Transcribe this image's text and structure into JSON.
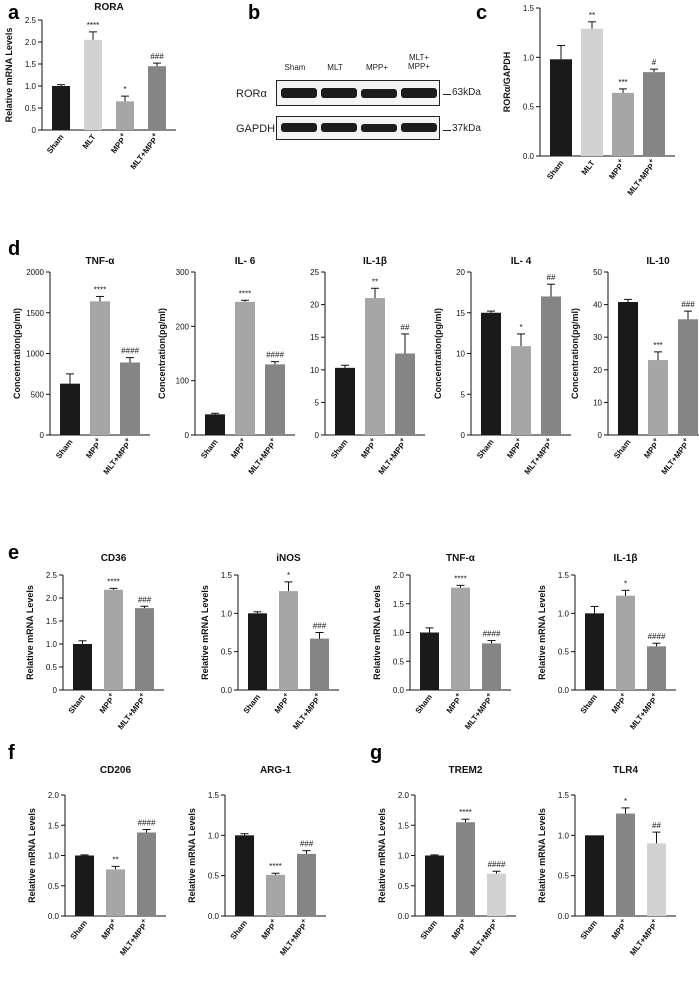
{
  "figure": {
    "panel_letters": [
      "a",
      "b",
      "c",
      "d",
      "e",
      "f",
      "g"
    ]
  },
  "colors": {
    "black": "#1a1a1a",
    "light_gray": "#d2d2d2",
    "mid_gray": "#a6a6a6",
    "dark_gray": "#858585"
  },
  "blot": {
    "lanes": [
      "Sham",
      "MLT",
      "MPP+",
      "MLT+ MPP+"
    ],
    "rows": [
      {
        "label": "RORα",
        "size": "63kDa"
      },
      {
        "label": "GAPDH",
        "size": "37kDa"
      }
    ]
  },
  "chart_data": [
    {
      "id": "a",
      "type": "bar",
      "title": "RORA",
      "xlabel": "",
      "ylabel": "Relative mRNA Levels",
      "categories": [
        "Sham",
        "MLT",
        "MPP+",
        "MLT+MPP+"
      ],
      "values": [
        1.0,
        2.05,
        0.65,
        1.45
      ],
      "errors": [
        0.03,
        0.18,
        0.12,
        0.07
      ],
      "annotations": [
        "",
        "****",
        "*",
        "###"
      ],
      "ylim": [
        0,
        2.5
      ],
      "ticks": [
        0,
        0.5,
        1.0,
        1.5,
        2.0,
        2.5
      ],
      "bar_colors": [
        "#1a1a1a",
        "#d2d2d2",
        "#a6a6a6",
        "#858585"
      ]
    },
    {
      "id": "c",
      "type": "bar",
      "title": "",
      "xlabel": "",
      "ylabel": "RORα/GAPDH",
      "categories": [
        "Sham",
        "MLT",
        "MPP+",
        "MLT+MPP+"
      ],
      "values": [
        0.98,
        1.29,
        0.64,
        0.85
      ],
      "errors": [
        0.14,
        0.07,
        0.04,
        0.03
      ],
      "annotations": [
        "",
        "**",
        "***",
        "#"
      ],
      "ylim": [
        0,
        1.5
      ],
      "ticks": [
        0.0,
        0.5,
        1.0,
        1.5
      ],
      "bar_colors": [
        "#1a1a1a",
        "#d2d2d2",
        "#a6a6a6",
        "#858585"
      ]
    },
    {
      "id": "d1",
      "type": "bar",
      "title": "TNF-α",
      "xlabel": "",
      "ylabel": "Concentration(pg/ml)",
      "categories": [
        "Sham",
        "MPP+",
        "MLT+MPP+"
      ],
      "values": [
        630,
        1640,
        890
      ],
      "errors": [
        120,
        60,
        60
      ],
      "annotations": [
        "",
        "****",
        "####"
      ],
      "ylim": [
        0,
        2000
      ],
      "ticks": [
        0,
        500,
        1000,
        1500,
        2000
      ],
      "bar_colors": [
        "#1a1a1a",
        "#a6a6a6",
        "#858585"
      ]
    },
    {
      "id": "d2",
      "type": "bar",
      "title": "IL- 6",
      "xlabel": "",
      "ylabel": "Concentration(pg/ml)",
      "categories": [
        "Sham",
        "MPP+",
        "MLT+MPP+"
      ],
      "values": [
        38,
        245,
        130
      ],
      "errors": [
        2,
        3,
        5
      ],
      "annotations": [
        "",
        "****",
        "####"
      ],
      "ylim": [
        0,
        300
      ],
      "ticks": [
        0,
        100,
        200,
        300
      ],
      "bar_colors": [
        "#1a1a1a",
        "#a6a6a6",
        "#858585"
      ]
    },
    {
      "id": "d3",
      "type": "bar",
      "title": "IL-1β",
      "xlabel": "",
      "ylabel": "",
      "categories": [
        "Sham",
        "MPP+",
        "MLT+MPP+"
      ],
      "values": [
        10.3,
        21.0,
        12.5
      ],
      "errors": [
        0.4,
        1.5,
        3.0
      ],
      "annotations": [
        "",
        "**",
        "##"
      ],
      "ylim": [
        0,
        25
      ],
      "ticks": [
        0,
        5,
        10,
        15,
        20,
        25
      ],
      "bar_colors": [
        "#1a1a1a",
        "#a6a6a6",
        "#858585"
      ]
    },
    {
      "id": "d4",
      "type": "bar",
      "title": "IL- 4",
      "xlabel": "",
      "ylabel": "Concentration(pg/ml)",
      "categories": [
        "Sham",
        "MPP+",
        "MLT+MPP+"
      ],
      "values": [
        15.0,
        10.9,
        17.0
      ],
      "errors": [
        0.2,
        1.5,
        1.5
      ],
      "annotations": [
        "",
        "*",
        "##"
      ],
      "ylim": [
        0,
        20
      ],
      "ticks": [
        0,
        5,
        10,
        15,
        20
      ],
      "bar_colors": [
        "#1a1a1a",
        "#a6a6a6",
        "#858585"
      ]
    },
    {
      "id": "d5",
      "type": "bar",
      "title": "IL-10",
      "xlabel": "",
      "ylabel": "Concentration(pg/ml)",
      "categories": [
        "Sham",
        "MPP+",
        "MLT+MPP+"
      ],
      "values": [
        40.8,
        23.0,
        35.5
      ],
      "errors": [
        0.8,
        2.5,
        2.5
      ],
      "annotations": [
        "",
        "***",
        "###"
      ],
      "ylim": [
        0,
        50
      ],
      "ticks": [
        0,
        10,
        20,
        30,
        40,
        50
      ],
      "bar_colors": [
        "#1a1a1a",
        "#a6a6a6",
        "#858585"
      ]
    },
    {
      "id": "e1",
      "type": "bar",
      "title": "CD36",
      "xlabel": "",
      "ylabel": "Relative mRNA Levels",
      "categories": [
        "Sham",
        "MPP+",
        "MLT+MPP+"
      ],
      "values": [
        1.0,
        2.18,
        1.78
      ],
      "errors": [
        0.07,
        0.03,
        0.04
      ],
      "annotations": [
        "",
        "****",
        "###"
      ],
      "ylim": [
        0,
        2.5
      ],
      "ticks": [
        0,
        0.5,
        1.0,
        1.5,
        2.0,
        2.5
      ],
      "bar_colors": [
        "#1a1a1a",
        "#a6a6a6",
        "#858585"
      ]
    },
    {
      "id": "e2",
      "type": "bar",
      "title": "iNOS",
      "xlabel": "",
      "ylabel": "Relative mRNA Levels",
      "categories": [
        "Sham",
        "MPP+",
        "MLT+MPP+"
      ],
      "values": [
        1.0,
        1.29,
        0.67
      ],
      "errors": [
        0.02,
        0.12,
        0.08
      ],
      "annotations": [
        "",
        "*",
        "###"
      ],
      "ylim": [
        0,
        1.5
      ],
      "ticks": [
        0.0,
        0.5,
        1.0,
        1.5
      ],
      "bar_colors": [
        "#1a1a1a",
        "#a6a6a6",
        "#858585"
      ]
    },
    {
      "id": "e3",
      "type": "bar",
      "title": "TNF-α",
      "xlabel": "",
      "ylabel": "Relative mRNA Levels",
      "categories": [
        "Sham",
        "MPP+",
        "MLT+MPP+"
      ],
      "values": [
        1.0,
        1.78,
        0.81
      ],
      "errors": [
        0.08,
        0.04,
        0.05
      ],
      "annotations": [
        "",
        "****",
        "####"
      ],
      "ylim": [
        0,
        2.0
      ],
      "ticks": [
        0.0,
        0.5,
        1.0,
        1.5,
        2.0
      ],
      "bar_colors": [
        "#1a1a1a",
        "#a6a6a6",
        "#858585"
      ]
    },
    {
      "id": "e4",
      "type": "bar",
      "title": "IL-1β",
      "xlabel": "",
      "ylabel": "Relative mRNA Levels",
      "categories": [
        "Sham",
        "MPP+",
        "MLT+MPP+"
      ],
      "values": [
        1.0,
        1.23,
        0.57
      ],
      "errors": [
        0.09,
        0.07,
        0.04
      ],
      "annotations": [
        "",
        "*",
        "####"
      ],
      "ylim": [
        0,
        1.5
      ],
      "ticks": [
        0.0,
        0.5,
        1.0,
        1.5
      ],
      "bar_colors": [
        "#1a1a1a",
        "#a6a6a6",
        "#858585"
      ]
    },
    {
      "id": "f1",
      "type": "bar",
      "title": "CD206",
      "xlabel": "",
      "ylabel": "Relative mRNA Levels",
      "categories": [
        "Sham",
        "MPP+",
        "MLT+MPP+"
      ],
      "values": [
        1.0,
        0.77,
        1.38
      ],
      "errors": [
        0.01,
        0.05,
        0.05
      ],
      "annotations": [
        "",
        "**",
        "####"
      ],
      "ylim": [
        0,
        2.0
      ],
      "ticks": [
        0.0,
        0.5,
        1.0,
        1.5,
        2.0
      ],
      "bar_colors": [
        "#1a1a1a",
        "#a6a6a6",
        "#858585"
      ]
    },
    {
      "id": "f2",
      "type": "bar",
      "title": "ARG-1",
      "xlabel": "",
      "ylabel": "Relative mRNA Levels",
      "categories": [
        "Sham",
        "MPP+",
        "MLT+MPP+"
      ],
      "values": [
        1.0,
        0.51,
        0.77
      ],
      "errors": [
        0.02,
        0.02,
        0.04
      ],
      "annotations": [
        "",
        "****",
        "###"
      ],
      "ylim": [
        0,
        1.5
      ],
      "ticks": [
        0.0,
        0.5,
        1.0,
        1.5
      ],
      "bar_colors": [
        "#1a1a1a",
        "#a6a6a6",
        "#858585"
      ]
    },
    {
      "id": "g1",
      "type": "bar",
      "title": "TREM2",
      "xlabel": "",
      "ylabel": "Relative mRNA Levels",
      "categories": [
        "Sham",
        "MPP+",
        "MLT+MPP+"
      ],
      "values": [
        1.0,
        1.55,
        0.7
      ],
      "errors": [
        0.01,
        0.05,
        0.04
      ],
      "annotations": [
        "",
        "****",
        "####"
      ],
      "ylim": [
        0,
        2.0
      ],
      "ticks": [
        0.0,
        0.5,
        1.0,
        1.5,
        2.0
      ],
      "bar_colors": [
        "#1a1a1a",
        "#858585",
        "#d2d2d2"
      ]
    },
    {
      "id": "g2",
      "type": "bar",
      "title": "TLR4",
      "xlabel": "",
      "ylabel": "Relative mRNA Levels",
      "categories": [
        "Sham",
        "MPP+",
        "MLT+MPP+"
      ],
      "values": [
        1.0,
        1.27,
        0.9
      ],
      "errors": [
        0.0,
        0.07,
        0.14
      ],
      "annotations": [
        "",
        "*",
        "##"
      ],
      "ylim": [
        0,
        1.5
      ],
      "ticks": [
        0.0,
        0.5,
        1.0,
        1.5
      ],
      "bar_colors": [
        "#1a1a1a",
        "#858585",
        "#d2d2d2"
      ]
    }
  ]
}
